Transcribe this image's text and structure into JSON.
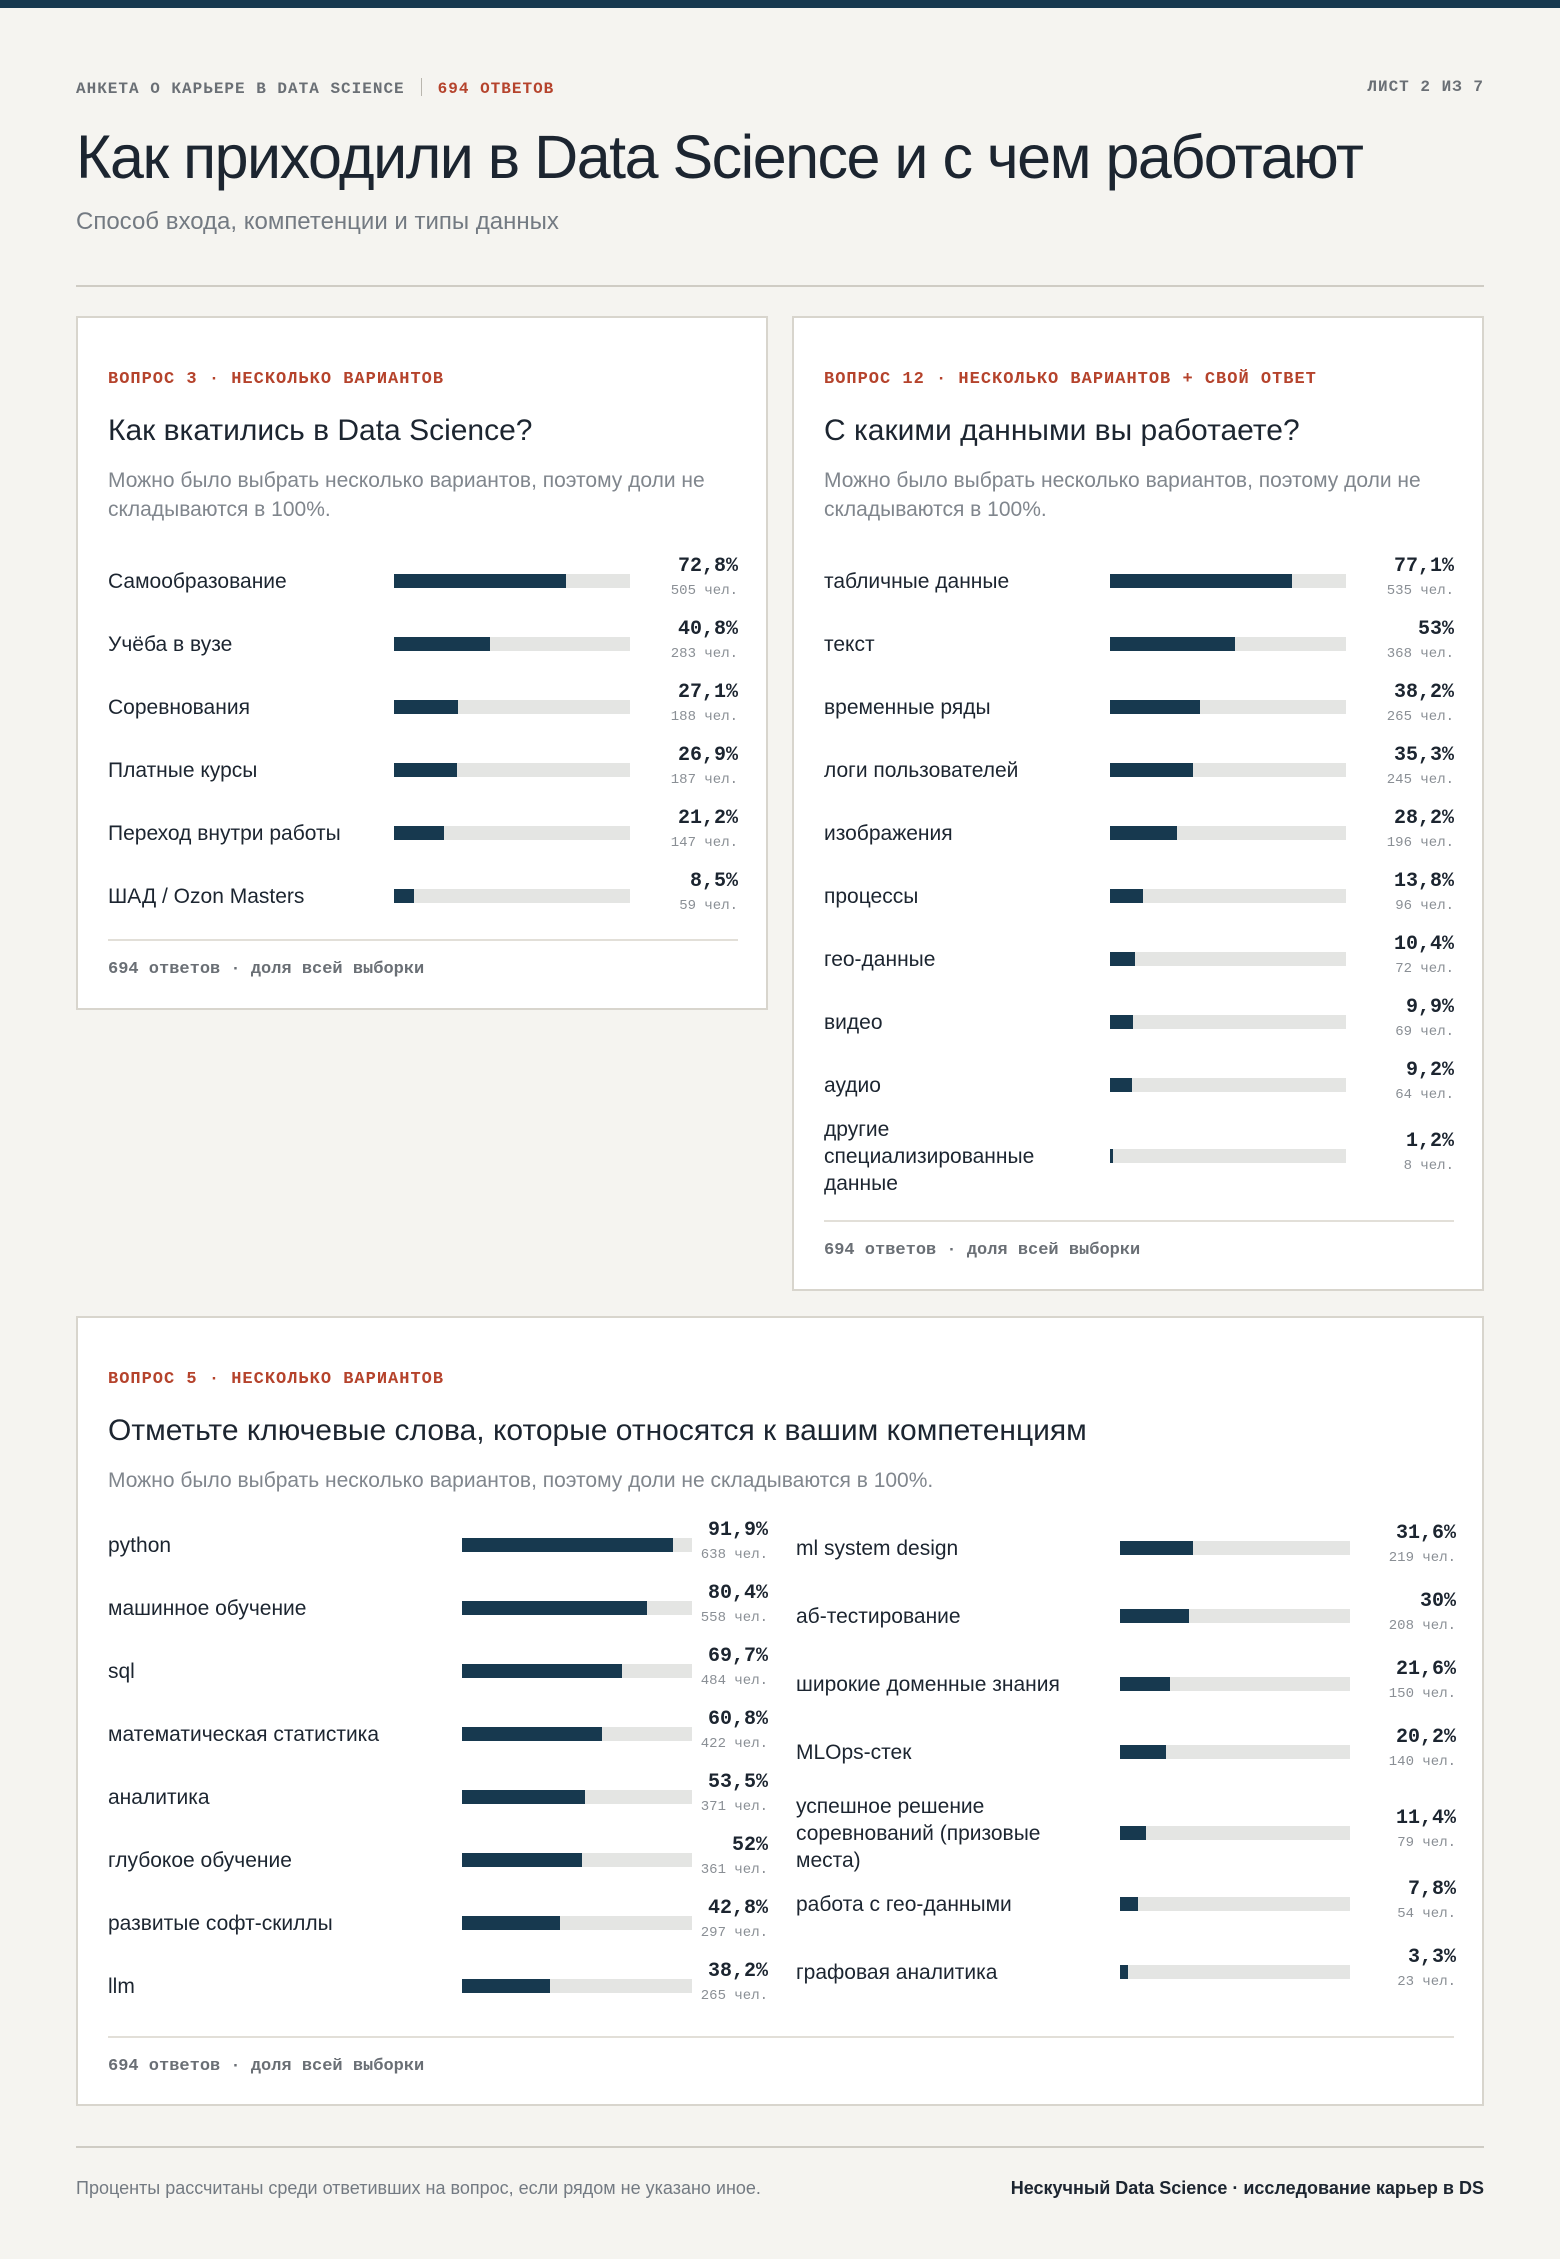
{
  "header": {
    "survey": "АНКЕТА О КАРЬЕРЕ В DATA SCIENCE",
    "responses": "694 ОТВЕТОВ",
    "sheet": "ЛИСТ 2 ИЗ 7",
    "title": "Как приходили в Data Science и с чем работают",
    "subtitle": "Способ входа, компетенции и типы данных"
  },
  "colors": {
    "accent": "#b5432c",
    "bar": "#17394f",
    "track": "#e4e5e3",
    "background": "#f5f4f0"
  },
  "chart_data": [
    {
      "type": "bar",
      "orientation": "horizontal",
      "kicker": "ВОПРОС 3 · НЕСКОЛЬКО ВАРИАНТОВ",
      "title": "Как вкатились в Data Science?",
      "note": "Можно было выбрать несколько вариантов, поэтому доли не складываются в 100%.",
      "footer": "694 ответов · доля всей выборки",
      "xlim": [
        0,
        100
      ],
      "rows": [
        {
          "label": "Самообразование",
          "value": 72.8,
          "pct": "72,8%",
          "count": "505 чел."
        },
        {
          "label": "Учёба в вузе",
          "value": 40.8,
          "pct": "40,8%",
          "count": "283 чел."
        },
        {
          "label": "Соревнования",
          "value": 27.1,
          "pct": "27,1%",
          "count": "188 чел."
        },
        {
          "label": "Платные курсы",
          "value": 26.9,
          "pct": "26,9%",
          "count": "187 чел."
        },
        {
          "label": "Переход внутри работы",
          "value": 21.2,
          "pct": "21,2%",
          "count": "147 чел."
        },
        {
          "label": "ШАД / Ozon Masters",
          "value": 8.5,
          "pct": "8,5%",
          "count": "59 чел."
        }
      ]
    },
    {
      "type": "bar",
      "orientation": "horizontal",
      "kicker": "ВОПРОС 12 · НЕСКОЛЬКО ВАРИАНТОВ + СВОЙ ОТВЕТ",
      "title": "С какими данными вы работаете?",
      "note": "Можно было выбрать несколько вариантов, поэтому доли не складываются в 100%.",
      "footer": "694 ответов · доля всей выборки",
      "xlim": [
        0,
        100
      ],
      "rows": [
        {
          "label": "табличные данные",
          "value": 77.1,
          "pct": "77,1%",
          "count": "535 чел."
        },
        {
          "label": "текст",
          "value": 53,
          "pct": "53%",
          "count": "368 чел."
        },
        {
          "label": "временные ряды",
          "value": 38.2,
          "pct": "38,2%",
          "count": "265 чел."
        },
        {
          "label": "логи пользователей",
          "value": 35.3,
          "pct": "35,3%",
          "count": "245 чел."
        },
        {
          "label": "изображения",
          "value": 28.2,
          "pct": "28,2%",
          "count": "196 чел."
        },
        {
          "label": "процессы",
          "value": 13.8,
          "pct": "13,8%",
          "count": "96 чел."
        },
        {
          "label": "гео-данные",
          "value": 10.4,
          "pct": "10,4%",
          "count": "72 чел."
        },
        {
          "label": "видео",
          "value": 9.9,
          "pct": "9,9%",
          "count": "69 чел."
        },
        {
          "label": "аудио",
          "value": 9.2,
          "pct": "9,2%",
          "count": "64 чел."
        },
        {
          "label": "другие специализированные данные",
          "value": 1.2,
          "pct": "1,2%",
          "count": "8 чел."
        }
      ]
    },
    {
      "type": "bar",
      "orientation": "horizontal",
      "kicker": "ВОПРОС 5 · НЕСКОЛЬКО ВАРИАНТОВ",
      "title": "Отметьте ключевые слова, которые относятся к вашим компетенциям",
      "note": "Можно было выбрать несколько вариантов, поэтому доли не складываются в 100%.",
      "footer": "694 ответов · доля всей выборки",
      "xlim": [
        0,
        100
      ],
      "rows": [
        {
          "label": "python",
          "value": 91.9,
          "pct": "91,9%",
          "count": "638 чел."
        },
        {
          "label": "машинное обучение",
          "value": 80.4,
          "pct": "80,4%",
          "count": "558 чел."
        },
        {
          "label": "sql",
          "value": 69.7,
          "pct": "69,7%",
          "count": "484 чел."
        },
        {
          "label": "математическая статистика",
          "value": 60.8,
          "pct": "60,8%",
          "count": "422 чел."
        },
        {
          "label": "аналитика",
          "value": 53.5,
          "pct": "53,5%",
          "count": "371 чел."
        },
        {
          "label": "глубокое обучение",
          "value": 52,
          "pct": "52%",
          "count": "361 чел."
        },
        {
          "label": "развитые софт-скиллы",
          "value": 42.8,
          "pct": "42,8%",
          "count": "297 чел."
        },
        {
          "label": "llm",
          "value": 38.2,
          "pct": "38,2%",
          "count": "265 чел."
        },
        {
          "label": "ml system design",
          "value": 31.6,
          "pct": "31,6%",
          "count": "219 чел."
        },
        {
          "label": "аб-тестирование",
          "value": 30,
          "pct": "30%",
          "count": "208 чел."
        },
        {
          "label": "широкие доменные знания",
          "value": 21.6,
          "pct": "21,6%",
          "count": "150 чел."
        },
        {
          "label": "MLOps-стек",
          "value": 20.2,
          "pct": "20,2%",
          "count": "140 чел."
        },
        {
          "label": "успешное решение соревнований (призовые места)",
          "value": 11.4,
          "pct": "11,4%",
          "count": "79 чел."
        },
        {
          "label": "работа с гео-данными",
          "value": 7.8,
          "pct": "7,8%",
          "count": "54 чел."
        },
        {
          "label": "графовая аналитика",
          "value": 3.3,
          "pct": "3,3%",
          "count": "23 чел."
        }
      ]
    }
  ],
  "footer": {
    "note": "Проценты рассчитаны среди ответивших на вопрос, если рядом не указано иное.",
    "brand": "Нескучный Data Science · исследование карьер в DS"
  }
}
